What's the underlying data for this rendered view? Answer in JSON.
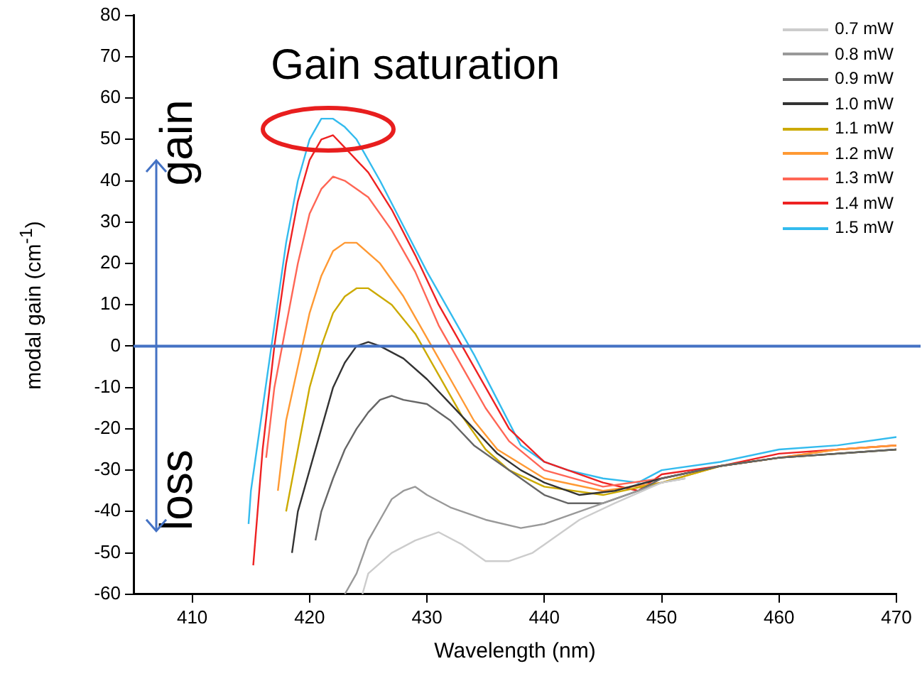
{
  "chart_data": {
    "type": "line",
    "xlabel": "Wavelength (nm)",
    "ylabel": "modal gain (cm$^{-1}$)",
    "xlim": [
      405,
      470
    ],
    "xticks": [
      410,
      420,
      430,
      440,
      450,
      460,
      470
    ],
    "ylim": [
      -60,
      80
    ],
    "yticks": [
      -60,
      -50,
      -40,
      -30,
      -20,
      -10,
      0,
      10,
      20,
      30,
      40,
      50,
      60,
      70,
      80
    ],
    "grid": false,
    "legend": "top right",
    "marker": "none",
    "line_style": "solid",
    "annotations": [
      "Gain saturation",
      "gain",
      "loss"
    ],
    "ref_lines": [
      {
        "axis": "y",
        "value": 0,
        "color": "#4472c4"
      }
    ],
    "series": [
      {
        "name": "0.7 mW",
        "color": "#cccccc",
        "x": [
          424.5,
          425,
          427,
          429,
          431,
          433,
          435,
          437,
          439,
          441,
          443,
          446,
          450,
          452
        ],
        "values": [
          -60,
          -55,
          -50,
          -47,
          -45,
          -48,
          -52,
          -52,
          -50,
          -46,
          -42,
          -38,
          -33,
          -32
        ]
      },
      {
        "name": "0.8 mW",
        "color": "#999999",
        "x": [
          423,
          424,
          425,
          426,
          427,
          428,
          429,
          430,
          432,
          435,
          438,
          440,
          443,
          446,
          450,
          452
        ],
        "values": [
          -60,
          -55,
          -47,
          -42,
          -37,
          -35,
          -34,
          -36,
          -39,
          -42,
          -44,
          -43,
          -40,
          -37,
          -33,
          -32
        ]
      },
      {
        "name": "0.9 mW",
        "color": "#666666",
        "x": [
          420.5,
          421,
          422,
          423,
          424,
          425,
          426,
          427,
          428,
          430,
          432,
          434,
          436,
          438,
          440,
          442,
          445,
          448,
          450,
          455,
          460,
          470
        ],
        "values": [
          -47,
          -40,
          -32,
          -25,
          -20,
          -16,
          -13,
          -12,
          -13,
          -14,
          -18,
          -24,
          -28,
          -32,
          -36,
          -38,
          -38,
          -35,
          -32,
          -29,
          -27,
          -25
        ]
      },
      {
        "name": "1.0 mW",
        "color": "#333333",
        "x": [
          418.5,
          419,
          420,
          421,
          422,
          423,
          424,
          425,
          426,
          428,
          430,
          432,
          434,
          436,
          438,
          440,
          443,
          446,
          450,
          455,
          460,
          470
        ],
        "values": [
          -50,
          -40,
          -30,
          -20,
          -10,
          -4,
          0,
          1,
          0,
          -3,
          -8,
          -14,
          -20,
          -26,
          -30,
          -33,
          -36,
          -35,
          -32,
          -29,
          -27,
          -25
        ]
      },
      {
        "name": "1.1 mW",
        "color": "#ccaa00",
        "x": [
          418,
          419,
          420,
          421,
          422,
          423,
          424,
          425,
          427,
          429,
          431,
          433,
          435,
          437,
          440,
          445,
          450,
          455,
          460,
          470
        ],
        "values": [
          -40,
          -25,
          -10,
          0,
          8,
          12,
          14,
          14,
          10,
          3,
          -7,
          -17,
          -25,
          -30,
          -34,
          -36,
          -33,
          -29,
          -27,
          -25
        ]
      },
      {
        "name": "1.2 mW",
        "color": "#ff9933",
        "x": [
          417.3,
          418,
          419,
          420,
          421,
          422,
          423,
          424,
          426,
          428,
          430,
          432,
          434,
          436,
          440,
          445,
          450,
          455,
          460,
          465,
          470
        ],
        "values": [
          -35,
          -18,
          -5,
          8,
          17,
          23,
          25,
          25,
          20,
          12,
          2,
          -8,
          -18,
          -25,
          -32,
          -35,
          -33,
          -29,
          -27,
          -25,
          -24
        ]
      },
      {
        "name": "1.3 mW",
        "color": "#ff6655",
        "x": [
          416.3,
          417,
          418,
          419,
          420,
          421,
          422,
          423,
          425,
          427,
          429,
          431,
          433,
          435,
          437,
          440,
          445,
          450,
          455,
          460,
          465,
          470
        ],
        "values": [
          -27,
          -10,
          5,
          20,
          32,
          38,
          41,
          40,
          36,
          28,
          18,
          5,
          -5,
          -15,
          -23,
          -30,
          -34,
          -32,
          -29,
          -27,
          -25,
          -24
        ]
      },
      {
        "name": "1.4 mW",
        "color": "#ee2222",
        "x": [
          415.2,
          416,
          417,
          418,
          419,
          420,
          421,
          422,
          423,
          425,
          427,
          429,
          431,
          433,
          435,
          437,
          440,
          445,
          448,
          450,
          455,
          460,
          465,
          470
        ],
        "values": [
          -53,
          -25,
          0,
          20,
          35,
          45,
          50,
          51,
          48,
          42,
          33,
          22,
          10,
          0,
          -10,
          -20,
          -28,
          -33,
          -35,
          -31,
          -29,
          -26,
          -25,
          -24
        ]
      },
      {
        "name": "1.5 mW",
        "color": "#33bbee",
        "x": [
          414.8,
          415,
          416,
          417,
          418,
          419,
          420,
          421,
          422,
          423,
          424,
          426,
          428,
          430,
          432,
          434,
          436,
          438,
          440,
          442,
          445,
          448,
          450,
          455,
          460,
          465,
          470
        ],
        "values": [
          -43,
          -35,
          -15,
          5,
          25,
          40,
          50,
          55,
          55,
          53,
          50,
          40,
          29,
          18,
          8,
          -2,
          -13,
          -24,
          -28,
          -30,
          -32,
          -33,
          -30,
          -28,
          -25,
          -24,
          -22
        ]
      }
    ]
  }
}
